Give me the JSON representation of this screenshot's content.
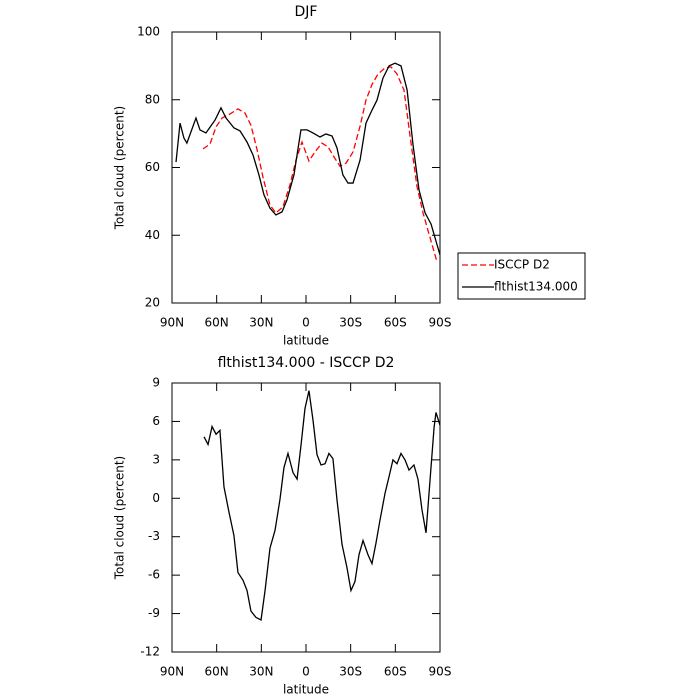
{
  "chart_data": [
    {
      "type": "line",
      "title": "DJF",
      "xlabel": "latitude",
      "ylabel": "Total cloud (percent)",
      "xlim": [
        90,
        -90
      ],
      "xticks": [
        {
          "value": 90,
          "label": "90N"
        },
        {
          "value": 60,
          "label": "60N"
        },
        {
          "value": 30,
          "label": "30N"
        },
        0,
        {
          "value": -30,
          "label": "30S"
        },
        {
          "value": -60,
          "label": "60S"
        },
        {
          "value": -90,
          "label": "90S"
        }
      ],
      "ylim": [
        20,
        100
      ],
      "yticks": [
        20,
        40,
        60,
        80,
        100
      ],
      "legend": "right",
      "series": [
        {
          "name": "ISCCP D2",
          "color": "#ff0000",
          "dash": true,
          "x": [
            69.2,
            64.5,
            60.4,
            56.4,
            51,
            45.7,
            41,
            37,
            33,
            28.9,
            24.2,
            20.2,
            15.6,
            10.8,
            6.7,
            2.7,
            -2,
            -6,
            -10.7,
            -14.8,
            -18.8,
            -22.8,
            -26.9,
            -31.6,
            -36.3,
            -40.3,
            -44.4,
            -48.4,
            -53.1,
            -57.1,
            -61.1,
            -65.8,
            -69.8,
            -74.5,
            -78.6,
            -82.6,
            -88
          ],
          "values": [
            65.5,
            66.9,
            72,
            74.6,
            75.8,
            77.3,
            76.1,
            72.5,
            65.5,
            57.2,
            48.9,
            46.6,
            48.3,
            54.8,
            62.2,
            67.5,
            61.9,
            64.6,
            67.2,
            66.1,
            63.1,
            60.4,
            61.3,
            64.6,
            72.2,
            79.9,
            84.6,
            87.6,
            89.4,
            89.7,
            87.6,
            82.9,
            69.6,
            54.5,
            46.6,
            40.4,
            32.1
          ]
        },
        {
          "name": "flthist134.000",
          "color": "#000000",
          "dash": false,
          "x": [
            87.3,
            84.6,
            82,
            80,
            73.9,
            71.2,
            67.2,
            61.1,
            57.1,
            53.7,
            48.4,
            44.3,
            39.6,
            35.6,
            31.6,
            28.2,
            24.2,
            20.2,
            16.1,
            12.8,
            8.1,
            3.4,
            -0.7,
            -4.7,
            -9.4,
            -13.4,
            -17.5,
            -20.8,
            -24.8,
            -28.2,
            -31.6,
            -36.3,
            -40.3,
            -44.4,
            -47.7,
            -51.7,
            -55.8,
            -59.8,
            -63.8,
            -67.9,
            -71.9,
            -75.9,
            -80,
            -84,
            -90
          ],
          "values": [
            61.6,
            73.1,
            68.7,
            67.2,
            74.6,
            71.1,
            70.2,
            74,
            77.6,
            74.6,
            71.7,
            70.8,
            67.5,
            63.7,
            57.8,
            51.9,
            48,
            46,
            46.9,
            50.4,
            57.8,
            71.1,
            71.1,
            70.2,
            69,
            69.9,
            69.3,
            65.8,
            57.8,
            55.4,
            55.4,
            62.2,
            73.1,
            77,
            79.9,
            86.4,
            90,
            90.8,
            90,
            82.9,
            66.6,
            53.4,
            46.6,
            43.3,
            34.2
          ]
        }
      ]
    },
    {
      "type": "line",
      "title": "flthist134.000 - ISCCP D2",
      "xlabel": "latitude",
      "ylabel": "Total cloud (percent)",
      "xlim": [
        90,
        -90
      ],
      "xticks": [
        {
          "value": 90,
          "label": "90N"
        },
        {
          "value": 60,
          "label": "60N"
        },
        {
          "value": 30,
          "label": "30N"
        },
        0,
        {
          "value": -30,
          "label": "30S"
        },
        {
          "value": -60,
          "label": "60S"
        },
        {
          "value": -90,
          "label": "90S"
        }
      ],
      "ylim": [
        -12,
        9
      ],
      "yticks": [
        -12,
        -9,
        -6,
        -3,
        0,
        3,
        6,
        9
      ],
      "series": [
        {
          "color": "#000000",
          "dash": false,
          "x": [
            68.5,
            65.8,
            63.1,
            60.4,
            57.8,
            55.1,
            51.7,
            48.4,
            45.7,
            42.3,
            39.6,
            37,
            33.6,
            30.2,
            27.5,
            24.2,
            20.8,
            17.5,
            14.8,
            12.1,
            8.7,
            6,
            3.4,
            0.7,
            -2,
            -4.7,
            -7.4,
            -10.1,
            -12.8,
            -15.4,
            -18.1,
            -20.8,
            -24.2,
            -27.5,
            -30.2,
            -32.9,
            -35.6,
            -38.3,
            -41.6,
            -44.3,
            -47,
            -49.7,
            -53.1,
            -55.8,
            -58.4,
            -61.1,
            -63.8,
            -66.5,
            -69.2,
            -72.5,
            -75.2,
            -77.9,
            -80.6,
            -83.3,
            -86,
            -87.3,
            -90
          ],
          "values": [
            4.8,
            4.2,
            5.6,
            5,
            5.3,
            0.9,
            -1.1,
            -2.9,
            -5.8,
            -6.4,
            -7.2,
            -8.8,
            -9.3,
            -9.5,
            -7.2,
            -3.9,
            -2.5,
            -0.1,
            2.4,
            3.5,
            2,
            1.5,
            4.1,
            7,
            8.4,
            6.1,
            3.4,
            2.6,
            2.7,
            3.5,
            3.1,
            -0.1,
            -3.6,
            -5.4,
            -7.2,
            -6.5,
            -4.4,
            -3.3,
            -4.4,
            -5.1,
            -3.5,
            -1.7,
            0.4,
            1.7,
            3,
            2.7,
            3.5,
            3,
            2.2,
            2.6,
            1.5,
            -0.9,
            -2.7,
            1.4,
            5.5,
            6.7,
            5.7
          ]
        }
      ]
    }
  ]
}
